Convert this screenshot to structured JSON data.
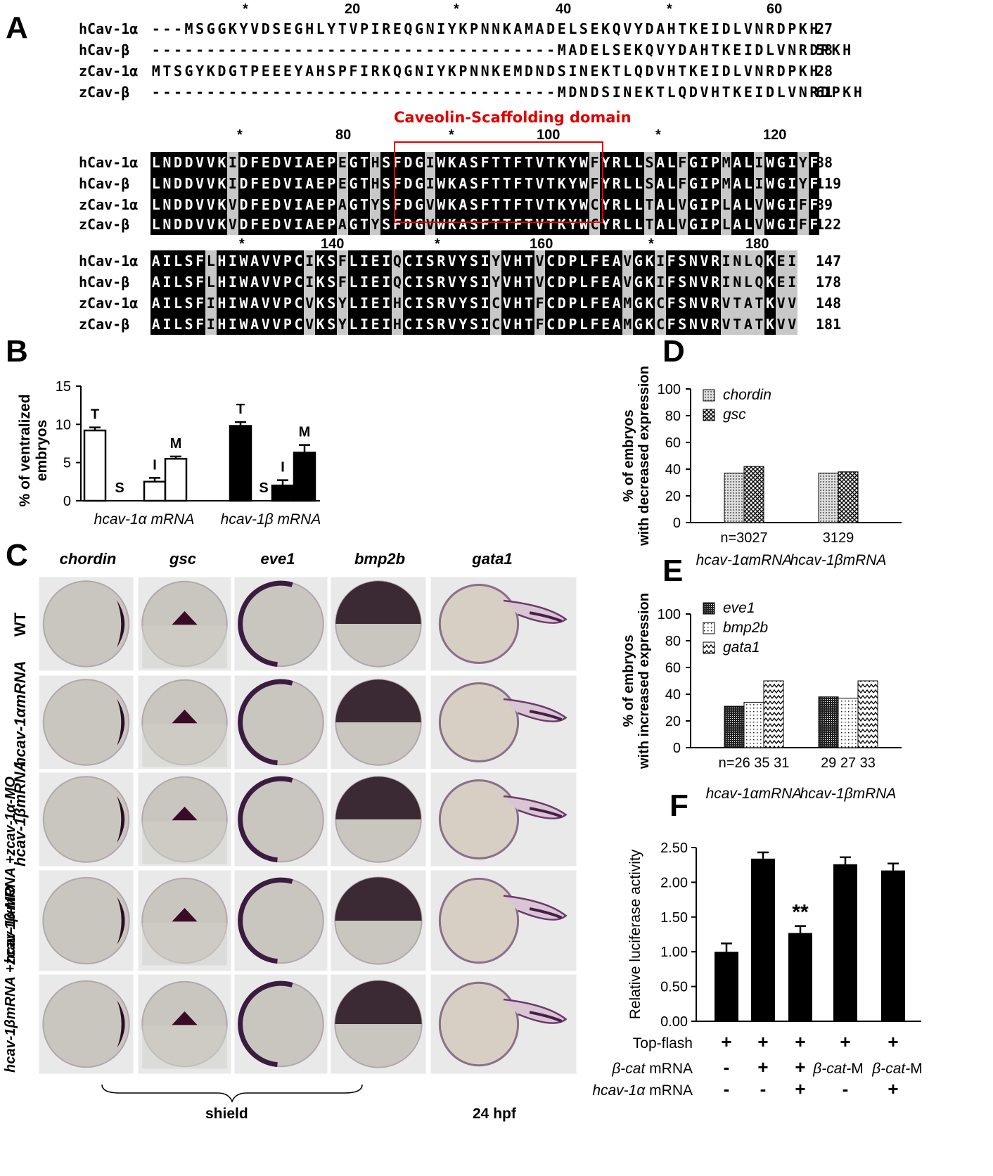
{
  "panels": {
    "A": "A",
    "B": "B",
    "C": "C",
    "D": "D",
    "E": "E",
    "F": "F"
  },
  "alignment": {
    "domain_label": "Caveolin-Scaffolding domain",
    "blocks": [
      {
        "ruler": [
          {
            "t": "*"
          },
          {
            "t": "20"
          },
          {
            "t": "*"
          },
          {
            "t": "40"
          },
          {
            "t": "*"
          },
          {
            "t": "60"
          }
        ],
        "rows": [
          {
            "name": "hCav-1α",
            "seq": "---MSGGKYVDSEGHLYTVPIREQGNIYKPNNKAMADELSEKQVYDAHTKEIDLVNRDPKH",
            "num": "27"
          },
          {
            "name": "hCav-β",
            "seq": "-------------------------------------MADELSEKQVYDAHTKEIDLVNRDPKH",
            "num": "58"
          },
          {
            "name": "zCav-1α",
            "seq": "MTSGYKDGTPEEEYAHSPFIRKQGNIYKPNNKEMDNDSINEKTLQDVHTKEIDLVNRDPKH",
            "num": "28"
          },
          {
            "name": "zCav-β",
            "seq": "-------------------------------------MDNDSINEKTLQDVHTKEIDLVNRDPKH",
            "num": "61"
          }
        ]
      },
      {
        "ruler": [
          {
            "t": "*"
          },
          {
            "t": "80"
          },
          {
            "t": "*"
          },
          {
            "t": "100"
          },
          {
            "t": "*"
          },
          {
            "t": "120"
          }
        ],
        "rows": [
          {
            "name": "hCav-1α",
            "seq": "LNDDVVKIDFEDVIAEPEGTHSFDGIWKASFTTFTVTKYWFYRLLSALFGIPMALIWGIYF",
            "num": "88"
          },
          {
            "name": "hCav-β",
            "seq": "LNDDVVKIDFEDVIAEPEGTHSFDGIWKASFTTFTVTKYWFYRLLSALFGIPMALIWGIYF",
            "num": "119"
          },
          {
            "name": "zCav-1α",
            "seq": "LNDDVVKVDFEDVIAEPAGTYSFDGVWKASFTTFTVTKYWCYRLLTALVGIPLALVWGIFF",
            "num": "89"
          },
          {
            "name": "zCav-β",
            "seq": "LNDDVVKVDFEDVIAEPAGTYSFDGVWKASFTTFTVTKYWCYRLLTALVGIPLALVWGIFF",
            "num": "122"
          }
        ]
      },
      {
        "ruler": [
          {
            "t": "*"
          },
          {
            "t": "140"
          },
          {
            "t": "*"
          },
          {
            "t": "160"
          },
          {
            "t": "*"
          },
          {
            "t": "180"
          }
        ],
        "rows": [
          {
            "name": "hCav-1α",
            "seq": "AILSFLHIWAVVPCIKSFLIEIQCISRVYSIYVHTVCDPLFEAVGKIFSNVRINLQKEI",
            "num": "147"
          },
          {
            "name": "hCav-β",
            "seq": "AILSFLHIWAVVPCIKSFLIEIQCISRVYSIYVHTVCDPLFEAVGKIFSNVRINLQKEI",
            "num": "178"
          },
          {
            "name": "zCav-1α",
            "seq": "AILSFIHIWAVVPCVKSYLIEIHCISRVYSICVHTFCDPLFEAMGKCFSNVRVTATKVV",
            "num": "148"
          },
          {
            "name": "zCav-β",
            "seq": "AILSFIHIWAVVPCVKSYLIEIHCISRVYSICVHTFCDPLFEAMGKCFSNVRVTATKVV",
            "num": "181"
          }
        ]
      }
    ]
  },
  "panelC": {
    "columns": [
      "chordin",
      "gsc",
      "eve1",
      "bmp2b",
      "gata1"
    ],
    "rows": [
      "WT",
      "hcav-1αmRNA",
      "hcav-1βmRNA",
      "hcav-1αmRNA +zcav-1α-MO",
      "hcav-1βmRNA +zcav-1β-MO"
    ],
    "stage_shield": "shield",
    "stage_24": "24 hpf"
  },
  "chart_data": [
    {
      "panel": "B",
      "type": "bar",
      "ylabel": "% of ventralized embryos",
      "ylim": [
        0,
        15
      ],
      "yticks": [
        "0",
        "5",
        "10",
        "15"
      ],
      "groups": [
        "hcav-1α mRNA",
        "hcav-1β mRNA"
      ],
      "categories": [
        "T",
        "S",
        "I",
        "M"
      ],
      "series": [
        {
          "name": "hcav-1α mRNA",
          "values": [
            9.2,
            0,
            2.5,
            5.5
          ],
          "errors": [
            0.4,
            0,
            0.5,
            0.3
          ],
          "color": "#ffffff"
        },
        {
          "name": "hcav-1β mRNA",
          "values": [
            9.8,
            0,
            2.0,
            6.3
          ],
          "errors": [
            0.5,
            0,
            0.7,
            1.0
          ],
          "color": "#000000"
        }
      ]
    },
    {
      "panel": "D",
      "type": "bar",
      "ylabel": "% of embryos with decreased expression",
      "ylim": [
        0,
        100
      ],
      "yticks": [
        "0",
        "20",
        "40",
        "60",
        "80",
        "100"
      ],
      "categories": [
        "hcav-1αmRNA",
        "hcav-1βmRNA"
      ],
      "n_labels": [
        [
          "n=30",
          "27"
        ],
        [
          "31",
          "29"
        ]
      ],
      "series": [
        {
          "name": "chordin",
          "values": [
            37,
            37
          ]
        },
        {
          "name": "gsc",
          "values": [
            42,
            38
          ]
        }
      ]
    },
    {
      "panel": "E",
      "type": "bar",
      "ylabel": "% of embryos with increased expression",
      "ylim": [
        0,
        100
      ],
      "yticks": [
        "0",
        "20",
        "40",
        "60",
        "80",
        "100"
      ],
      "categories": [
        "hcav-1αmRNA",
        "hcav-1βmRNA"
      ],
      "n_labels": [
        [
          "n=26",
          "35",
          "31"
        ],
        [
          "29",
          "27",
          "33"
        ]
      ],
      "series": [
        {
          "name": "eve1",
          "values": [
            31,
            38
          ]
        },
        {
          "name": "bmp2b",
          "values": [
            34,
            37
          ]
        },
        {
          "name": "gata1",
          "values": [
            50,
            50
          ]
        }
      ]
    },
    {
      "panel": "F",
      "type": "bar",
      "ylabel": "Relative luciferase activity",
      "ylim": [
        0,
        2.5
      ],
      "yticks": [
        "0.00",
        "0.50",
        "1.00",
        "1.50",
        "2.00",
        "2.50"
      ],
      "values": [
        1.0,
        2.34,
        1.27,
        2.26,
        2.17
      ],
      "errors": [
        0.12,
        0.09,
        0.1,
        0.1,
        0.1
      ],
      "significance": [
        "",
        "",
        "**",
        "",
        ""
      ],
      "conditions": [
        {
          "label": "Top-flash",
          "cells": [
            "+",
            "+",
            "+",
            "+",
            "+"
          ]
        },
        {
          "label": "β-cat mRNA",
          "cells": [
            "-",
            "+",
            "+",
            "β-cat-M",
            "β-cat-M"
          ]
        },
        {
          "label": "hcav-1α mRNA",
          "cells": [
            "-",
            "-",
            "+",
            "-",
            "+"
          ]
        }
      ]
    }
  ]
}
